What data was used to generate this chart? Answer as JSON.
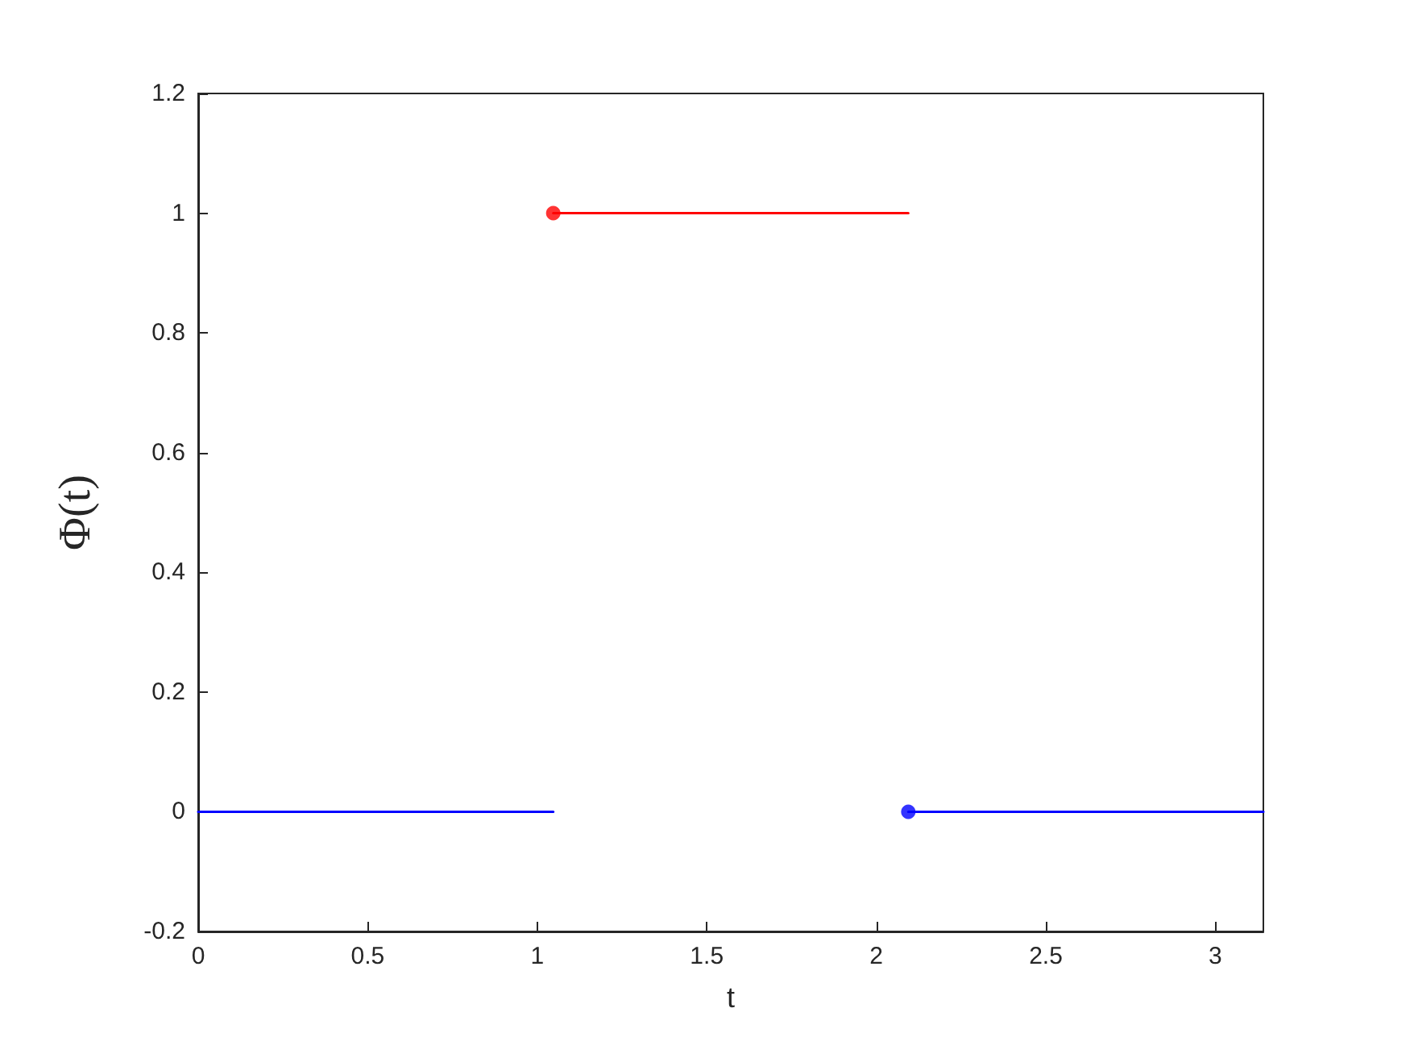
{
  "chart_data": {
    "type": "line",
    "xlabel": "t",
    "ylabel": "Φ(t)",
    "xlim": [
      0,
      3.1416
    ],
    "xticks": [
      0,
      0.5,
      1,
      1.5,
      2,
      2.5,
      3
    ],
    "ylim": [
      -0.2,
      1.2
    ],
    "yticks": [
      -0.2,
      0,
      0.2,
      0.4,
      0.6,
      0.8,
      1,
      1.2
    ],
    "grid": false,
    "marker": "none",
    "line_style": "solid",
    "series": [
      {
        "color": "#0000ff",
        "x": [
          0,
          1.0472
        ],
        "values": [
          0,
          0
        ]
      },
      {
        "color": "#ff0000",
        "x": [
          1.0472,
          2.0944
        ],
        "values": [
          1,
          1
        ]
      },
      {
        "type": "scatter",
        "marker": "circle",
        "color": "#ff0000",
        "x": [
          1.0472
        ],
        "values": [
          1
        ]
      },
      {
        "color": "#0000ff",
        "x": [
          2.0944,
          3.1416
        ],
        "values": [
          0,
          0
        ]
      },
      {
        "type": "scatter",
        "marker": "circle",
        "color": "#0000ff",
        "x": [
          2.0944
        ],
        "values": [
          0
        ]
      }
    ]
  }
}
